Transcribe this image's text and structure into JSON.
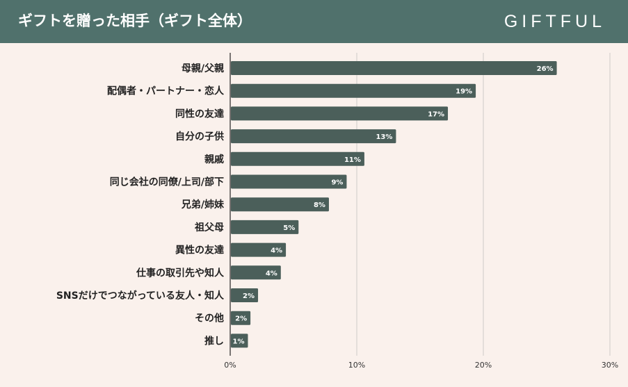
{
  "header": {
    "title": "ギフトを贈った相手（ギフト全体）",
    "brand": "GIFTFUL"
  },
  "colors": {
    "header_bg": "#50716c",
    "page_bg": "#faf1ec",
    "bar": "#4b5f5a",
    "grid": "#cfcac7",
    "axis": "#222222"
  },
  "chart_data": {
    "type": "bar",
    "orientation": "horizontal",
    "title": "ギフトを贈った相手（ギフト全体）",
    "xlabel": "",
    "ylabel": "",
    "xlim": [
      0,
      30
    ],
    "xticks": [
      0,
      10,
      20,
      30
    ],
    "xtick_labels": [
      "0%",
      "10%",
      "20%",
      "30%"
    ],
    "grid": true,
    "categories": [
      "母親/父親",
      "配偶者・パートナー・恋人",
      "同性の友達",
      "自分の子供",
      "親戚",
      "同じ会社の同僚/上司/部下",
      "兄弟/姉妹",
      "祖父母",
      "異性の友達",
      "仕事の取引先や知人",
      "SNSだけでつながっている友人・知人",
      "その他",
      "推し"
    ],
    "values": [
      25.8,
      19.4,
      17.2,
      13.1,
      10.6,
      9.2,
      7.8,
      5.4,
      4.4,
      4.0,
      2.2,
      1.6,
      1.4
    ],
    "data_labels": [
      "26%",
      "19%",
      "17%",
      "13%",
      "11%",
      "9%",
      "8%",
      "5%",
      "4%",
      "4%",
      "2%",
      "2%",
      "1%"
    ]
  }
}
